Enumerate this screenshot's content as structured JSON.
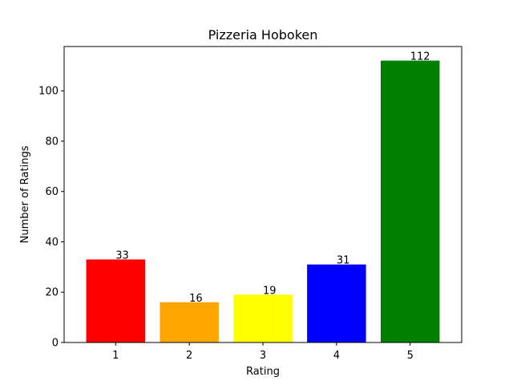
{
  "chart_data": {
    "type": "bar",
    "title": "Pizzeria Hoboken",
    "xlabel": "Rating",
    "ylabel": "Number of Ratings",
    "categories": [
      "1",
      "2",
      "3",
      "4",
      "5"
    ],
    "values": [
      33,
      16,
      19,
      31,
      112
    ],
    "value_labels": [
      "33",
      "16",
      "19",
      "31",
      "112"
    ],
    "colors": [
      "#ff0000",
      "#ffa500",
      "#ffff00",
      "#0000ff",
      "#008000"
    ],
    "ylim": [
      0,
      117.6
    ],
    "yticks": [
      0,
      20,
      40,
      60,
      80,
      100
    ],
    "ytick_labels": [
      "0",
      "20",
      "40",
      "60",
      "80",
      "100"
    ],
    "grid": false,
    "legend": "none"
  }
}
